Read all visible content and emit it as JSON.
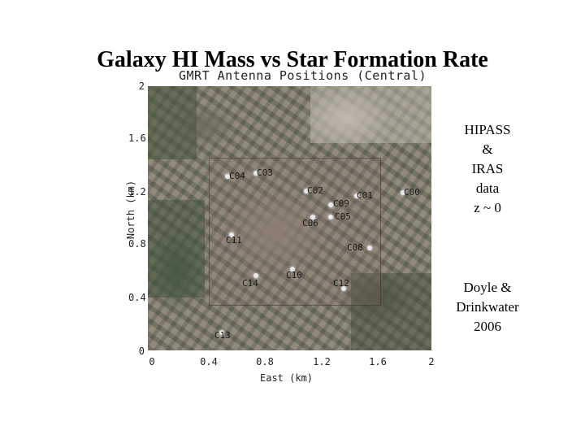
{
  "slide": {
    "title": "Galaxy HI Mass vs Star Formation Rate"
  },
  "map": {
    "title": "GMRT Antenna Positions (Central)",
    "y_axis_label": "North (km)",
    "x_axis_label": "East (km)",
    "y_ticks": [
      "2",
      "1.6",
      "1.2",
      "0.8",
      "0.4",
      "0"
    ],
    "x_ticks": [
      "0",
      "0.4",
      "0.8",
      "1.2",
      "1.6",
      "2"
    ],
    "antennas": [
      "C04",
      "C03",
      "C02",
      "C09",
      "C01",
      "C00",
      "C05",
      "C06",
      "C11",
      "C08",
      "C10",
      "C12",
      "C14",
      "C13"
    ]
  },
  "notes": {
    "data_lines": [
      "HIPASS",
      "&",
      "IRAS",
      "data",
      "z ~ 0"
    ],
    "citation_lines": [
      "Doyle &",
      "Drinkwater",
      "2006"
    ]
  }
}
